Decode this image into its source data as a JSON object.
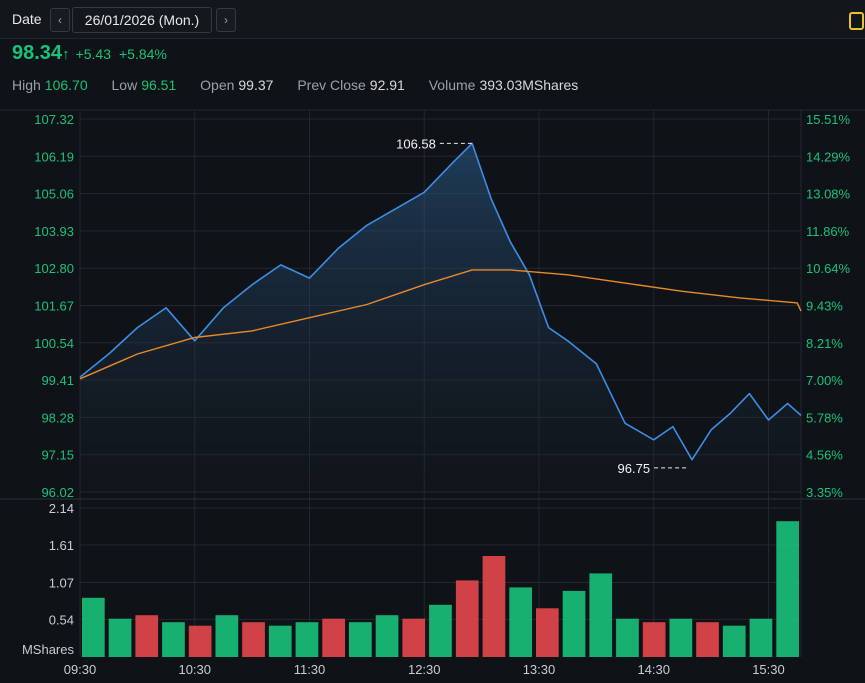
{
  "toolbar": {
    "date_label": "Date",
    "date_value": "26/01/2026 (Mon.)",
    "prev_icon": "chevron-left-icon",
    "next_icon": "chevron-right-icon",
    "corner_icon": "panel-icon"
  },
  "quote": {
    "price": "98.34",
    "direction_icon": "up-arrow-icon",
    "change": "+5.43",
    "change_pct": "+5.84%"
  },
  "stats": {
    "high_label": "High",
    "high": "106.70",
    "low_label": "Low",
    "low": "96.51",
    "open_label": "Open",
    "open": "99.37",
    "prev_close_label": "Prev Close",
    "prev_close": "92.91",
    "volume_label": "Volume",
    "volume": "393.03MShares"
  },
  "colors": {
    "up": "#19c27b",
    "down": "#e5484d",
    "price_line": "#3b8ee6",
    "avg_line": "#e8892a",
    "grid": "#23272e"
  },
  "chart_data": {
    "type": "line",
    "x_tick_labels": [
      "09:30",
      "10:30",
      "11:30",
      "12:30",
      "13:30",
      "14:30",
      "15:30"
    ],
    "y_ticks": [
      "107.32",
      "106.19",
      "105.06",
      "103.93",
      "102.80",
      "101.67",
      "100.54",
      "99.41",
      "98.28",
      "97.15",
      "96.02"
    ],
    "y_pct_ticks": [
      "15.51%",
      "14.29%",
      "13.08%",
      "11.86%",
      "10.64%",
      "9.43%",
      "8.21%",
      "7.00%",
      "5.78%",
      "4.56%",
      "3.35%"
    ],
    "ylim": [
      96.02,
      107.32
    ],
    "price_series": {
      "name": "",
      "x": [
        "09:30",
        "09:45",
        "10:00",
        "10:15",
        "10:30",
        "10:45",
        "11:00",
        "11:15",
        "11:30",
        "11:45",
        "12:00",
        "12:15",
        "12:30",
        "12:45",
        "12:55",
        "13:05",
        "13:15",
        "13:25",
        "13:35",
        "13:45",
        "14:00",
        "14:15",
        "14:30",
        "14:40",
        "14:50",
        "15:00",
        "15:10",
        "15:20",
        "15:30",
        "15:40",
        "15:47"
      ],
      "values": [
        99.5,
        100.2,
        101.0,
        101.6,
        100.6,
        101.6,
        102.3,
        102.9,
        102.5,
        103.4,
        104.1,
        104.6,
        105.1,
        106.0,
        106.58,
        104.9,
        103.6,
        102.6,
        101.0,
        100.6,
        99.9,
        98.1,
        97.6,
        98.0,
        97.0,
        97.9,
        98.4,
        99.0,
        98.2,
        98.7,
        98.34
      ]
    },
    "avg_series": {
      "name": "",
      "x": [
        "09:30",
        "10:00",
        "10:30",
        "11:00",
        "11:30",
        "12:00",
        "12:30",
        "12:55",
        "13:15",
        "13:45",
        "14:15",
        "14:45",
        "15:15",
        "15:45",
        "15:47"
      ],
      "values": [
        99.45,
        100.2,
        100.7,
        100.9,
        101.3,
        101.7,
        102.3,
        102.75,
        102.75,
        102.6,
        102.35,
        102.1,
        101.9,
        101.75,
        101.5
      ]
    },
    "annotations": [
      {
        "label": "106.58",
        "x": "12:57",
        "value": 106.58,
        "side": "left"
      },
      {
        "label": "96.75",
        "x": "14:49",
        "value": 96.75,
        "side": "left"
      }
    ],
    "volume": {
      "unit_label": "MShares",
      "y_ticks": [
        "2.14",
        "1.61",
        "1.07",
        "0.54"
      ],
      "ylim": [
        0,
        2.14
      ],
      "x": [
        "09:30",
        "09:45",
        "10:00",
        "10:15",
        "10:30",
        "10:45",
        "11:00",
        "11:15",
        "11:30",
        "11:45",
        "12:00",
        "12:15",
        "12:30",
        "12:45",
        "13:00",
        "13:15",
        "13:30",
        "13:45",
        "14:00",
        "14:15",
        "14:30",
        "14:45",
        "15:00",
        "15:15",
        "15:30",
        "15:45",
        "15:47"
      ],
      "values": [
        0.85,
        0.55,
        0.6,
        0.5,
        0.45,
        0.6,
        0.5,
        0.45,
        0.5,
        0.55,
        0.5,
        0.6,
        0.55,
        0.75,
        1.1,
        1.45,
        1.0,
        0.7,
        0.95,
        1.2,
        0.55,
        0.5,
        0.55,
        0.5,
        0.45,
        0.55,
        1.95
      ],
      "up": [
        true,
        true,
        false,
        true,
        false,
        true,
        false,
        true,
        true,
        false,
        true,
        true,
        false,
        true,
        false,
        false,
        true,
        false,
        true,
        true,
        true,
        false,
        true,
        false,
        true,
        true,
        true
      ]
    }
  }
}
